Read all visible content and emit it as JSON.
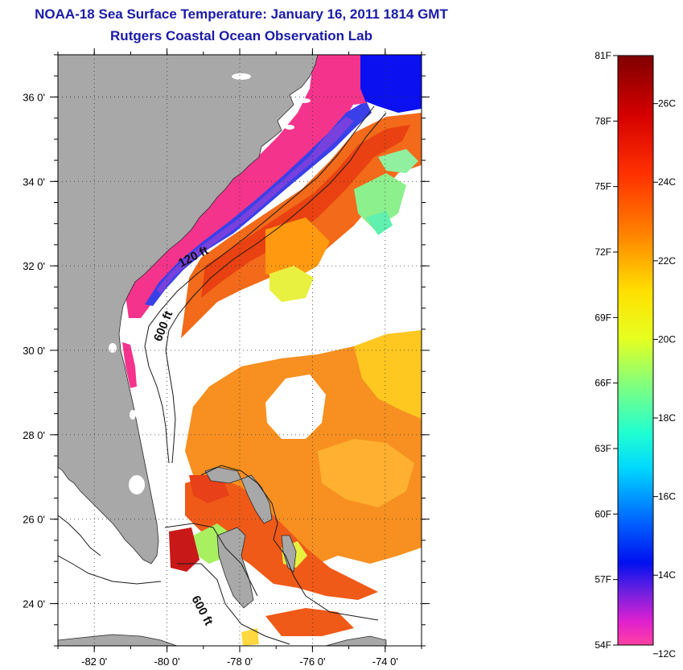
{
  "header": {
    "title": "NOAA-18 Sea Surface Temperature:  January 16, 2011 1814 GMT",
    "subtitle": "Rutgers Coastal Ocean Observation Lab"
  },
  "map": {
    "lat_ticks": [
      36,
      34,
      32,
      30,
      28,
      26,
      24
    ],
    "lat_labels": [
      "36 0'",
      "34 0'",
      "32 0'",
      "30 0'",
      "28 0'",
      "26 0'",
      "24 0'"
    ],
    "lon_ticks": [
      -82,
      -80,
      -78,
      -76,
      -74
    ],
    "lon_labels": [
      "-82 0'",
      "-80 0'",
      "-78 0'",
      "-76 0'",
      "-74 0'"
    ],
    "lat_range": [
      23,
      37
    ],
    "lon_range": [
      -83,
      -73
    ],
    "contour_labels": [
      "120 ft",
      "600 ft",
      "600 ft"
    ],
    "colors": {
      "land": "#a8a8a8",
      "no_data": "#ffffff",
      "grid": "#333333"
    }
  },
  "colorbar": {
    "f_labels": [
      "81F",
      "78F",
      "75F",
      "72F",
      "69F",
      "66F",
      "63F",
      "60F",
      "57F",
      "54F"
    ],
    "c_labels": [
      "26C",
      "24C",
      "22C",
      "20C",
      "18C",
      "16C",
      "14C",
      "12C"
    ],
    "f_values": [
      81,
      78,
      75,
      72,
      69,
      66,
      63,
      60,
      57,
      54
    ],
    "c_values": [
      26,
      24,
      22,
      20,
      18,
      16,
      14,
      12
    ],
    "range_f": [
      54,
      81
    ]
  }
}
